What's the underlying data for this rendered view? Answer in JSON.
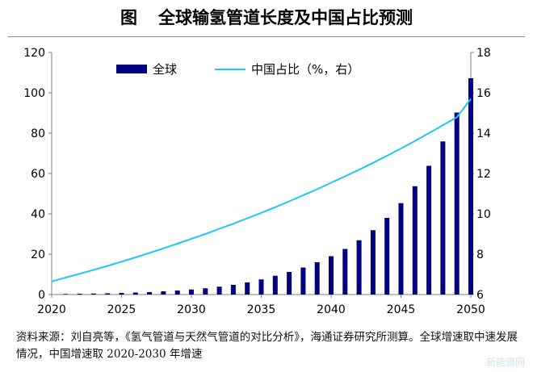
{
  "title": {
    "fig_label": "图",
    "text": "全球输氢管道长度及中国占比预测"
  },
  "source": {
    "line1": "资料来源：刘自亮等，《氢气管道与天然气管道的对比分析》，海通证券研究所测算。全球增速取中速发展情况，中国增速取 2020-2030 年增速"
  },
  "watermark": "新能源网",
  "colors": {
    "bar": "#000080",
    "line": "#1ec8f0",
    "axis": "#808080"
  },
  "chart_data": {
    "type": "bar+line",
    "x_ticks": [
      2020,
      2025,
      2030,
      2035,
      2040,
      2045,
      2050
    ],
    "y_left": {
      "lim": [
        0,
        120
      ],
      "ticks": [
        0,
        20,
        40,
        60,
        80,
        100,
        120
      ]
    },
    "y_right": {
      "lim": [
        6,
        18
      ],
      "ticks": [
        6,
        8,
        10,
        12,
        14,
        16,
        18
      ]
    },
    "legend": {
      "placement": "top",
      "bar_label": "全球",
      "line_label": "中国占比（%，右）"
    },
    "series": [
      {
        "name": "全球",
        "axis": "left",
        "kind": "bar",
        "x": [
          2021,
          2022,
          2023,
          2024,
          2025,
          2026,
          2027,
          2028,
          2029,
          2030,
          2031,
          2032,
          2033,
          2034,
          2035,
          2036,
          2037,
          2038,
          2039,
          2040,
          2041,
          2042,
          2043,
          2044,
          2045,
          2046,
          2047,
          2048,
          2049,
          2050
        ],
        "values": [
          0.3,
          0.4,
          0.5,
          0.6,
          0.8,
          1.0,
          1.2,
          1.6,
          2.0,
          2.5,
          3.1,
          3.9,
          4.8,
          6.0,
          7.5,
          9.3,
          11.2,
          13.4,
          16.0,
          19.0,
          22.6,
          26.9,
          31.9,
          38.0,
          45.3,
          53.7,
          63.8,
          75.9,
          90.2,
          107.2
        ]
      },
      {
        "name": "中国占比（%，右）",
        "axis": "right",
        "kind": "line",
        "x": [
          2020,
          2021,
          2022,
          2023,
          2024,
          2025,
          2026,
          2027,
          2028,
          2029,
          2030,
          2031,
          2032,
          2033,
          2034,
          2035,
          2036,
          2037,
          2038,
          2039,
          2040,
          2041,
          2042,
          2043,
          2044,
          2045,
          2046,
          2047,
          2048,
          2049,
          2050
        ],
        "values": [
          6.65,
          6.84,
          7.03,
          7.22,
          7.42,
          7.63,
          7.84,
          8.06,
          8.29,
          8.52,
          8.76,
          9.0,
          9.26,
          9.51,
          9.78,
          10.05,
          10.33,
          10.62,
          10.92,
          11.22,
          11.54,
          11.86,
          12.19,
          12.53,
          12.88,
          13.24,
          13.61,
          14.0,
          14.39,
          14.79,
          15.7
        ]
      }
    ]
  }
}
